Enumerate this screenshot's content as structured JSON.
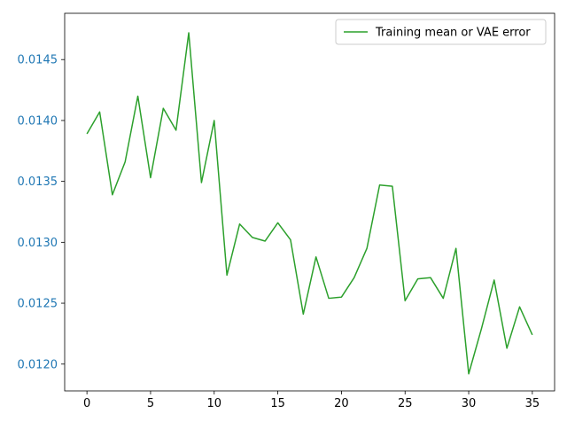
{
  "chart_data": {
    "type": "line",
    "title": "",
    "xlabel": "",
    "ylabel": "",
    "xlim": [
      -1.75,
      36.75
    ],
    "ylim": [
      0.01178,
      0.01488
    ],
    "x_ticks": [
      0,
      5,
      10,
      15,
      20,
      25,
      30,
      35
    ],
    "y_ticks": [
      0.012,
      0.0125,
      0.013,
      0.0135,
      0.014,
      0.0145
    ],
    "y_tick_labels": [
      "0.0120",
      "0.0125",
      "0.0130",
      "0.0135",
      "0.0140",
      "0.0145"
    ],
    "y_tick_color": "#1f77b4",
    "grid": false,
    "legend_position": "top-right",
    "series": [
      {
        "name": "Training mean or VAE error",
        "color": "#2ca02c",
        "x": [
          0,
          1,
          2,
          3,
          4,
          5,
          6,
          7,
          8,
          9,
          10,
          11,
          12,
          13,
          14,
          15,
          16,
          17,
          18,
          19,
          20,
          21,
          22,
          23,
          24,
          25,
          26,
          27,
          28,
          29,
          30,
          31,
          32,
          33,
          34,
          35
        ],
        "values": [
          0.01389,
          0.01407,
          0.01339,
          0.01366,
          0.0142,
          0.01353,
          0.0141,
          0.01392,
          0.01472,
          0.01349,
          0.014,
          0.01273,
          0.01315,
          0.01304,
          0.01301,
          0.01316,
          0.01302,
          0.01241,
          0.01288,
          0.01254,
          0.01255,
          0.01271,
          0.01295,
          0.01347,
          0.01346,
          0.01252,
          0.0127,
          0.01271,
          0.01254,
          0.01295,
          0.01192,
          0.01229,
          0.01269,
          0.01213,
          0.01247,
          0.01224
        ]
      }
    ]
  }
}
